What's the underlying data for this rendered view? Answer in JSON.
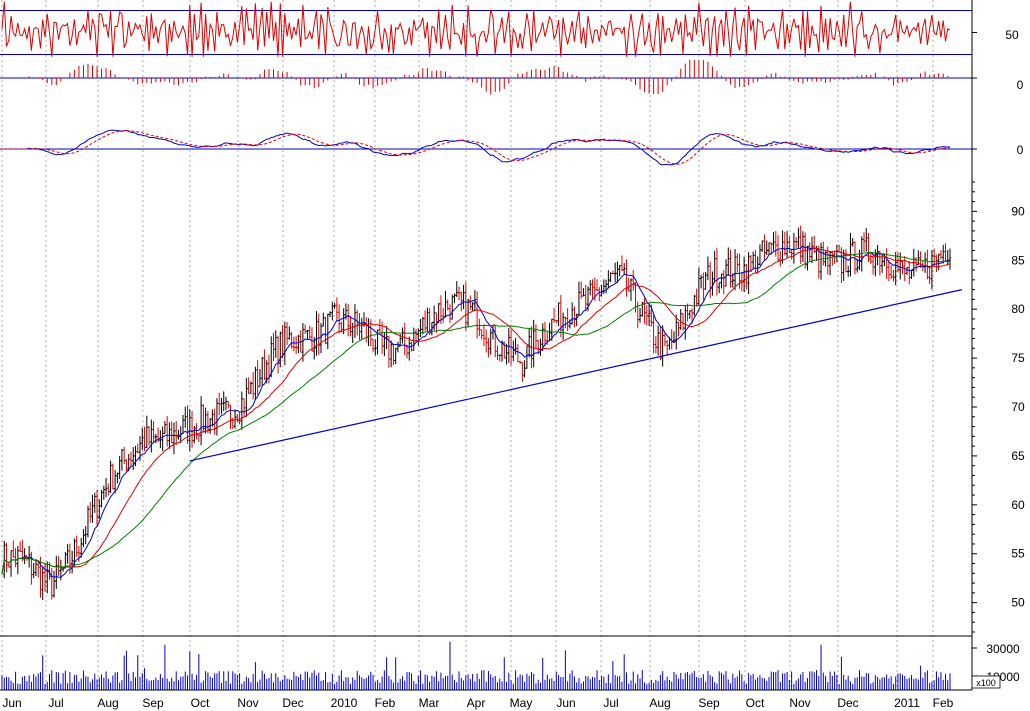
{
  "chart_data": [
    {
      "type": "line",
      "name": "rsi-panel",
      "ylim": [
        25,
        75
      ],
      "reference_lines": [
        70,
        30
      ],
      "tick_labels": [
        "50"
      ],
      "colors": {
        "line": "#e00000",
        "reference": "#0000cc"
      }
    },
    {
      "type": "bar",
      "name": "macd-histogram-panel",
      "ylim": [
        -10,
        10
      ],
      "tick_labels": [
        "0"
      ],
      "colors": {
        "bar": "#e00000",
        "zero": "#0000cc"
      }
    },
    {
      "type": "line",
      "name": "macd-panel",
      "ylim": [
        -3,
        6
      ],
      "tick_labels": [
        "0"
      ],
      "series": [
        {
          "style": "solid",
          "color": "#0000cc"
        },
        {
          "style": "dashed",
          "color": "#e00000"
        }
      ]
    },
    {
      "type": "line",
      "name": "price-panel",
      "ylim": [
        47,
        93
      ],
      "yticks": [
        50,
        55,
        60,
        65,
        70,
        75,
        80,
        85,
        90
      ],
      "xlabels": [
        "Jun",
        "Jul",
        "Aug",
        "Sep",
        "Oct",
        "Nov",
        "Dec",
        "2010",
        "Feb",
        "Mar",
        "Apr",
        "May",
        "Jun",
        "Jul",
        "Aug",
        "Sep",
        "Oct",
        "Nov",
        "Dec",
        "2011",
        "Feb"
      ],
      "x": [
        "2009-06",
        "2009-07",
        "2009-08",
        "2009-09",
        "2009-10",
        "2009-11",
        "2009-12",
        "2010-01",
        "2010-02",
        "2010-03",
        "2010-04",
        "2010-05",
        "2010-06",
        "2010-07",
        "2010-08",
        "2010-09",
        "2010-10",
        "2010-11",
        "2010-12",
        "2011-01",
        "2011-02"
      ],
      "close": [
        54.5,
        52.0,
        59.5,
        67.5,
        67.0,
        71.0,
        76.0,
        79.5,
        75.5,
        79.0,
        80.0,
        74.0,
        81.0,
        82.5,
        76.5,
        83.0,
        86.0,
        85.5,
        85.5,
        84.0,
        86.0
      ],
      "trendline": {
        "from": [
          "2009-10",
          64.5
        ],
        "to": [
          "2011-02",
          82.0
        ]
      },
      "series": [
        {
          "style": "moving-average",
          "color": "#0000cc"
        },
        {
          "style": "moving-average",
          "color": "#e00000"
        },
        {
          "style": "moving-average",
          "color": "#008000"
        }
      ],
      "colors": {
        "up": "#000000",
        "down": "#e00000",
        "trend": "#0000cc"
      }
    },
    {
      "type": "bar",
      "name": "volume-panel",
      "yticks": [
        10000,
        30000
      ],
      "tick_labels": [
        "30000",
        "10000"
      ],
      "multiplier": "x100",
      "colors": {
        "bar": "#0000cc"
      }
    }
  ]
}
